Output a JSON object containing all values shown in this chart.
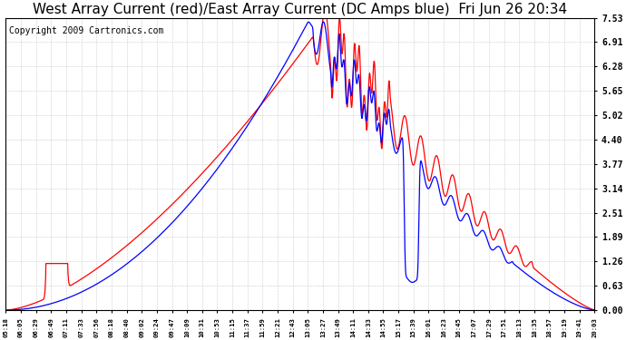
{
  "title": "West Array Current (red)/East Array Current (DC Amps blue)  Fri Jun 26 20:34",
  "copyright": "Copyright 2009 Cartronics.com",
  "y_ticks": [
    0.0,
    0.63,
    1.26,
    1.89,
    2.51,
    3.14,
    3.77,
    4.4,
    5.02,
    5.65,
    6.28,
    6.91,
    7.53
  ],
  "y_max": 7.53,
  "x_labels": [
    "05:18",
    "06:05",
    "06:29",
    "06:49",
    "07:11",
    "07:33",
    "07:56",
    "08:18",
    "08:40",
    "09:02",
    "09:24",
    "09:47",
    "10:09",
    "10:31",
    "10:53",
    "11:15",
    "11:37",
    "11:59",
    "12:21",
    "12:43",
    "13:05",
    "13:27",
    "13:49",
    "14:11",
    "14:33",
    "14:55",
    "15:17",
    "15:39",
    "16:01",
    "16:23",
    "16:45",
    "17:07",
    "17:29",
    "17:51",
    "18:13",
    "18:35",
    "18:57",
    "19:19",
    "19:41",
    "20:03"
  ],
  "background_color": "#ffffff",
  "grid_color": "#cccccc",
  "red_color": "#ff0000",
  "blue_color": "#0000ff",
  "title_fontsize": 11,
  "copyright_fontsize": 7
}
